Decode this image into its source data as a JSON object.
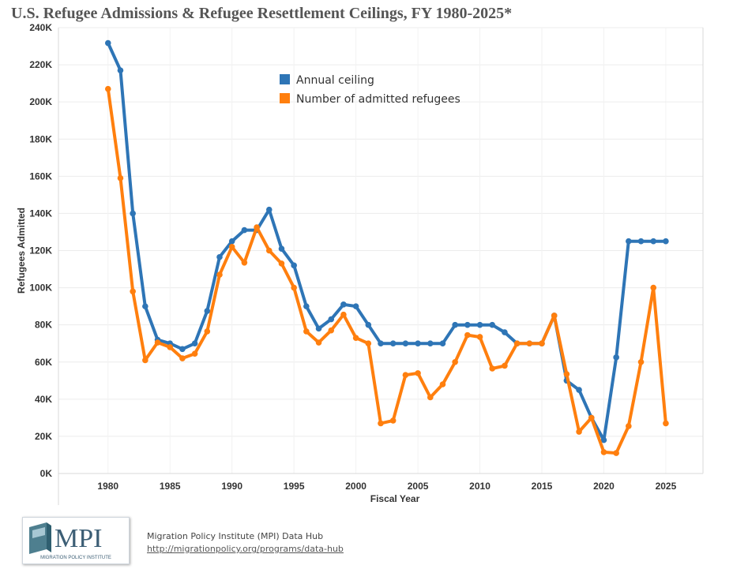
{
  "chart_data": {
    "type": "line",
    "title": "U.S. Refugee Admissions & Refugee Resettlement Ceilings, FY 1980-2025*",
    "xlabel": "Fiscal Year",
    "ylabel": "Refugees Admitted",
    "x": [
      1980,
      1981,
      1982,
      1983,
      1984,
      1985,
      1986,
      1987,
      1988,
      1989,
      1990,
      1991,
      1992,
      1993,
      1994,
      1995,
      1996,
      1997,
      1998,
      1999,
      2000,
      2001,
      2002,
      2003,
      2004,
      2005,
      2006,
      2007,
      2008,
      2009,
      2010,
      2011,
      2012,
      2013,
      2014,
      2015,
      2016,
      2017,
      2018,
      2019,
      2020,
      2021,
      2022,
      2023,
      2024,
      2025
    ],
    "xlim": [
      1976,
      2028
    ],
    "ylim": [
      0,
      240000
    ],
    "x_ticks": [
      1980,
      1985,
      1990,
      1995,
      2000,
      2005,
      2010,
      2015,
      2020,
      2025
    ],
    "x_tick_labels": [
      "1980",
      "1985",
      "1990",
      "1995",
      "2000",
      "2005",
      "2010",
      "2015",
      "2020",
      "2025"
    ],
    "y_ticks": [
      0,
      20000,
      40000,
      60000,
      80000,
      100000,
      120000,
      140000,
      160000,
      180000,
      200000,
      220000,
      240000
    ],
    "y_tick_labels": [
      "0K",
      "20K",
      "40K",
      "60K",
      "80K",
      "100K",
      "120K",
      "140K",
      "160K",
      "180K",
      "200K",
      "220K",
      "240K"
    ],
    "grid": true,
    "legend_position": "top-center",
    "series": [
      {
        "name": "Annual ceiling",
        "color": "#2e75b6",
        "values": [
          231700,
          217000,
          140000,
          90000,
          72000,
          70000,
          67000,
          70000,
          87500,
          116500,
          125000,
          131000,
          131000,
          142000,
          121000,
          112000,
          90000,
          78000,
          83000,
          91000,
          90000,
          80000,
          70000,
          70000,
          70000,
          70000,
          70000,
          70000,
          80000,
          80000,
          80000,
          80000,
          76000,
          70000,
          70000,
          70000,
          85000,
          50000,
          45000,
          30000,
          18000,
          62500,
          125000,
          125000,
          125000,
          125000
        ]
      },
      {
        "name": "Number of admitted refugees",
        "color": "#ff7f0e",
        "values": [
          207000,
          159000,
          98000,
          61000,
          70500,
          68000,
          62000,
          64500,
          76500,
          107000,
          122000,
          113500,
          132500,
          120000,
          113000,
          100000,
          76500,
          70500,
          77000,
          85500,
          73000,
          70000,
          27000,
          28500,
          53000,
          54000,
          41000,
          48000,
          60000,
          74500,
          73500,
          56500,
          58000,
          70000,
          70000,
          70000,
          85000,
          53500,
          22500,
          30000,
          11500,
          11000,
          25500,
          60000,
          100000,
          27000
        ]
      }
    ]
  },
  "footer": {
    "logo_text": "MPI",
    "logo_subtext": "MIGRATION POLICY INSTITUTE",
    "source_line": "Migration Policy Institute (MPI) Data Hub",
    "source_link": "http://migrationpolicy.org/programs/data-hub"
  }
}
